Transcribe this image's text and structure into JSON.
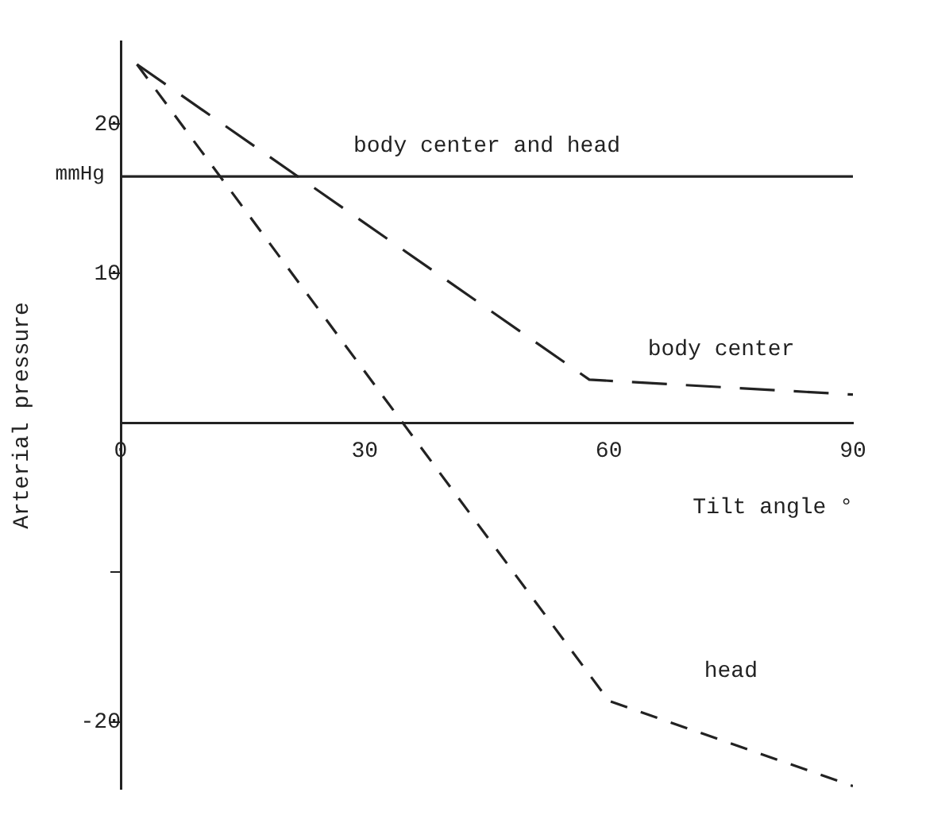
{
  "chart_data": {
    "type": "line",
    "xlabel": "Tilt angle °",
    "ylabel": "Arterial pressure",
    "annotations": [
      "mmHg"
    ],
    "xlim": [
      0,
      90
    ],
    "xticks": [
      0,
      30,
      60,
      90
    ],
    "ylim": [
      -24.5,
      25.5
    ],
    "yticks": [
      -20,
      {
        "value": -10,
        "label": null
      },
      10,
      20
    ],
    "grid": false,
    "legend": false,
    "marker": "none",
    "series": [
      {
        "name": "body center and head",
        "color": "#222222",
        "line_style": "solid",
        "x": [
          0,
          90
        ],
        "values": [
          16.5,
          16.5
        ]
      },
      {
        "name": "body center",
        "color": "#222222",
        "line_style": "dashed",
        "x": [
          2,
          57.6,
          90
        ],
        "values": [
          24,
          2.9,
          1.9
        ]
      },
      {
        "name": "head",
        "color": "#222222",
        "line_style": "dotted",
        "x": [
          2,
          60,
          90
        ],
        "values": [
          24,
          -18.6,
          -24.3
        ]
      }
    ]
  }
}
